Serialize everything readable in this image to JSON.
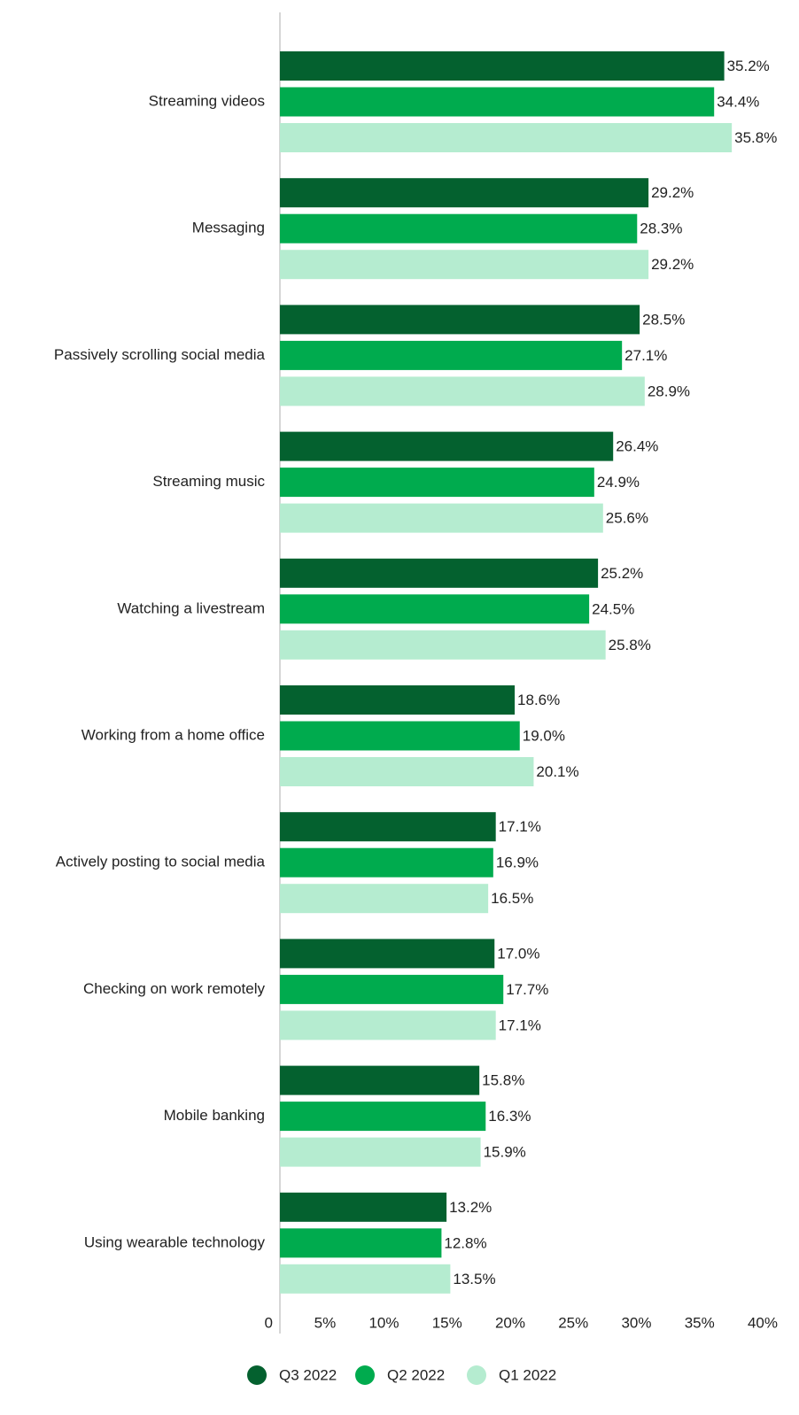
{
  "chart_data": {
    "type": "hbar",
    "categories": [
      "Streaming videos",
      "Messaging",
      "Passively scrolling social media",
      "Streaming music",
      "Watching a livestream",
      "Working from a home office",
      "Actively posting to social media",
      "Checking on work remotely",
      "Mobile banking",
      "Using wearable technology"
    ],
    "series": [
      {
        "name": "Q3 2022",
        "color": "#04612f",
        "values": [
          35.2,
          29.2,
          28.5,
          26.4,
          25.2,
          18.6,
          17.1,
          17.0,
          15.8,
          13.2
        ],
        "value_labels": [
          "35.2%",
          "29.2%",
          "28.5%",
          "26.4%",
          "25.2%",
          "18.6%",
          "17.1%",
          "17.0%",
          "15.8%",
          "13.2%"
        ]
      },
      {
        "name": "Q2 2022",
        "color": "#00ab4e",
        "values": [
          34.4,
          28.3,
          27.1,
          24.9,
          24.5,
          19.0,
          16.9,
          17.7,
          16.3,
          12.8
        ],
        "value_labels": [
          "34.4%",
          "28.3%",
          "27.1%",
          "24.9%",
          "24.5%",
          "19.0%",
          "16.9%",
          "17.7%",
          "16.3%",
          "12.8%"
        ]
      },
      {
        "name": "Q1 2022",
        "color": "#b5ecd0",
        "values": [
          35.8,
          29.2,
          28.9,
          25.6,
          25.8,
          20.1,
          16.5,
          17.1,
          15.9,
          13.5
        ],
        "value_labels": [
          "35.8%",
          "29.2%",
          "28.9%",
          "25.6%",
          "25.8%",
          "20.1%",
          "16.5%",
          "17.1%",
          "15.9%",
          "13.5%"
        ]
      }
    ],
    "xlim": [
      0,
      40
    ],
    "xticks": [
      0,
      {
        "value": 5,
        "label": "5%"
      },
      {
        "value": 10,
        "label": "10%"
      },
      {
        "value": 15,
        "label": "15%"
      },
      {
        "value": 20,
        "label": "20%"
      },
      {
        "value": 25,
        "label": "25%"
      },
      {
        "value": 30,
        "label": "30%"
      },
      {
        "value": 35,
        "label": "35%"
      },
      {
        "value": 40,
        "label": "40%"
      }
    ],
    "legend": "bottom"
  }
}
